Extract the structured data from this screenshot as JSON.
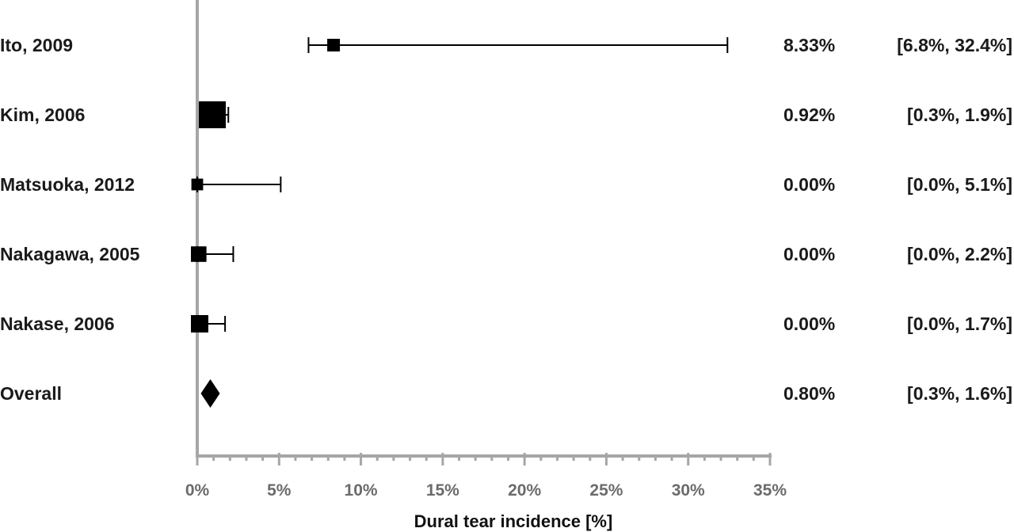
{
  "chart_data": {
    "type": "forest",
    "xlabel": "Dural tear incidence [%]",
    "xlim": [
      0,
      35
    ],
    "x_ticks": [
      0,
      5,
      10,
      15,
      20,
      25,
      30,
      35
    ],
    "x_tick_labels": [
      "0%",
      "5%",
      "10%",
      "15%",
      "20%",
      "25%",
      "30%",
      "35%"
    ],
    "grid": false,
    "studies": [
      {
        "label": "Ito, 2009",
        "estimate": 8.33,
        "ci_low": 6.8,
        "ci_high": 32.4,
        "weight": 0.25,
        "estimate_text": "8.33%",
        "ci_text": "[6.8%, 32.4%]"
      },
      {
        "label": "Kim, 2006",
        "estimate": 0.92,
        "ci_low": 0.3,
        "ci_high": 1.9,
        "weight": 1.0,
        "estimate_text": "0.92%",
        "ci_text": "[0.3%,    1.9%]"
      },
      {
        "label": "Matsuoka, 2012",
        "estimate": 0.0,
        "ci_low": 0.0,
        "ci_high": 5.1,
        "weight": 0.2,
        "estimate_text": "0.00%",
        "ci_text": "[0.0%,    5.1%]"
      },
      {
        "label": "Nakagawa, 2005",
        "estimate": 0.0,
        "ci_low": 0.0,
        "ci_high": 2.2,
        "weight": 0.4,
        "estimate_text": "0.00%",
        "ci_text": "[0.0%,    2.2%]"
      },
      {
        "label": "Nakase, 2006",
        "estimate": 0.0,
        "ci_low": 0.0,
        "ci_high": 1.7,
        "weight": 0.5,
        "estimate_text": "0.00%",
        "ci_text": "[0.0%,    1.7%]"
      }
    ],
    "overall": {
      "label": "Overall",
      "estimate": 0.8,
      "ci_low": 0.3,
      "ci_high": 1.6,
      "estimate_text": "0.80%",
      "ci_text": "[0.3%,    1.6%]"
    }
  }
}
